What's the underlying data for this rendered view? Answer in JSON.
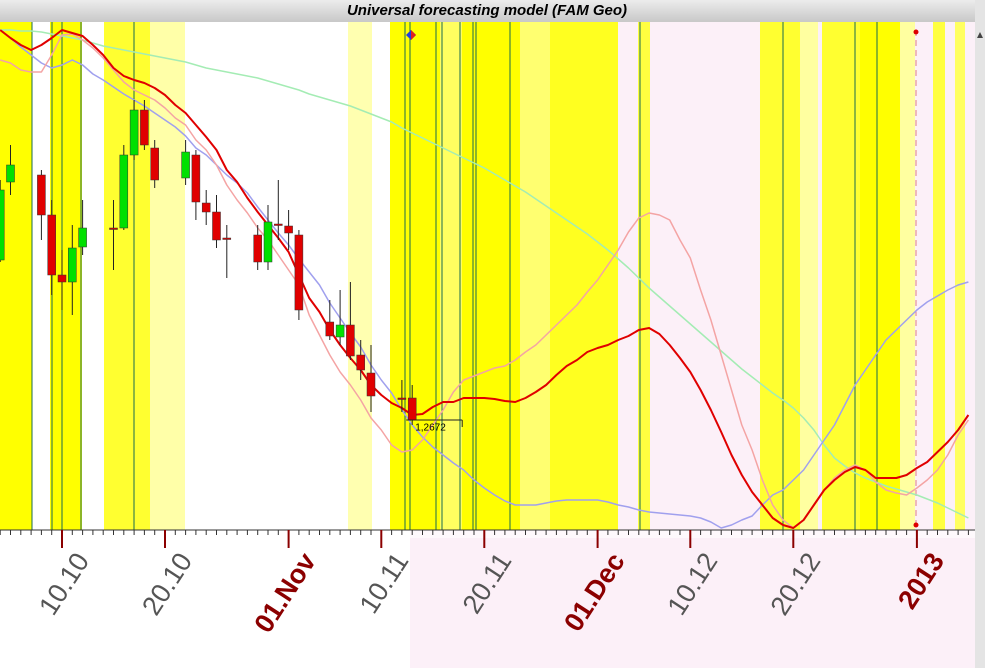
{
  "chart_data": {
    "type": "candlestick",
    "title": "Universal forecasting model (FAM Geo)",
    "categories": [
      null,
      null,
      null,
      null,
      null,
      null,
      "10.10",
      null,
      null,
      null,
      null,
      null,
      null,
      null,
      null,
      null,
      "20.10",
      null,
      null,
      null,
      null,
      null,
      null,
      null,
      null,
      null,
      null,
      null,
      "01.Nov",
      null,
      null,
      null,
      null,
      null,
      null,
      null,
      null,
      "10.11",
      null,
      null,
      null,
      null,
      null,
      null,
      null,
      null,
      null,
      "20.11",
      null,
      null,
      null,
      null,
      null,
      null,
      null,
      null,
      null,
      null,
      "01.Dec",
      null,
      null,
      null,
      null,
      null,
      null,
      null,
      null,
      "10.12",
      null,
      null,
      null,
      null,
      null,
      null,
      null,
      null,
      null,
      "20.12",
      null,
      null,
      null,
      null,
      null,
      null,
      null,
      null,
      null,
      null,
      null,
      "2013",
      null,
      null,
      null,
      null,
      null
    ],
    "ohlc": {
      "up_color": "#00e000",
      "down_color": "#e00000",
      "open": [
        1.2832,
        1.291,
        null,
        null,
        1.2917,
        1.2877,
        1.2817,
        1.281,
        1.2845,
        null,
        null,
        1.2864,
        1.2864,
        1.2937,
        1.2982,
        1.2944,
        null,
        null,
        1.2914,
        1.2937,
        1.2889,
        1.288,
        1.2854,
        null,
        null,
        1.2857,
        1.283,
        1.2868,
        1.2866,
        1.2857,
        null,
        null,
        1.277,
        1.2755,
        1.2767,
        1.2737,
        1.2719,
        null,
        null,
        1.2694,
        1.2694,
        null,
        null,
        null,
        null,
        null,
        null,
        null,
        null,
        null,
        null,
        null,
        null,
        null,
        null,
        null,
        null,
        null,
        null,
        null,
        null,
        null,
        null,
        null,
        null,
        null,
        null,
        null,
        null,
        null,
        null,
        null,
        null,
        null,
        null,
        null,
        null,
        null,
        null,
        null,
        null,
        null,
        null,
        null,
        null,
        null,
        null,
        null,
        null,
        null,
        null,
        null,
        null,
        null,
        null
      ],
      "high": [
        1.2912,
        1.2947,
        null,
        null,
        1.2922,
        1.2892,
        1.2842,
        1.2867,
        1.2892,
        null,
        null,
        1.2892,
        1.2947,
        1.2992,
        1.2992,
        1.2952,
        null,
        null,
        1.2952,
        1.2942,
        1.2902,
        1.2897,
        1.2867,
        null,
        null,
        1.2867,
        1.2887,
        1.2912,
        1.2882,
        1.2862,
        null,
        null,
        1.2792,
        1.2802,
        1.281,
        1.2752,
        1.2747,
        null,
        null,
        1.2712,
        1.2707,
        null,
        null,
        null,
        null,
        null,
        null,
        null,
        null,
        null,
        null,
        null,
        null,
        null,
        null,
        null,
        null,
        null,
        null,
        null,
        null,
        null,
        null,
        null,
        null,
        null,
        null,
        null,
        null,
        null,
        null,
        null,
        null,
        null,
        null,
        null,
        null,
        null,
        null,
        null,
        null,
        null,
        null,
        null,
        null,
        null,
        null,
        null,
        null,
        null,
        null,
        null,
        null,
        null,
        null
      ],
      "low": [
        1.283,
        1.2897,
        null,
        null,
        1.2852,
        1.2797,
        1.2782,
        1.2777,
        1.2837,
        null,
        null,
        1.2822,
        1.2862,
        1.2932,
        1.2942,
        1.2904,
        null,
        null,
        1.2907,
        1.2872,
        1.2867,
        1.2844,
        1.2814,
        null,
        null,
        1.2822,
        1.2822,
        1.2852,
        1.2842,
        1.2772,
        null,
        null,
        1.2752,
        1.2747,
        1.2732,
        1.2712,
        1.268,
        null,
        null,
        1.268,
        1.2667,
        null,
        null,
        null,
        null,
        null,
        null,
        null,
        null,
        null,
        null,
        null,
        null,
        null,
        null,
        null,
        null,
        null,
        null,
        null,
        null,
        null,
        null,
        null,
        null,
        null,
        null,
        null,
        null,
        null,
        null,
        null,
        null,
        null,
        null,
        null,
        null,
        null,
        null,
        null,
        null,
        null,
        null,
        null,
        null,
        null,
        null,
        null,
        null,
        null,
        null,
        null,
        null,
        null,
        null
      ],
      "close": [
        1.2902,
        1.2927,
        null,
        null,
        1.2877,
        1.2817,
        1.281,
        1.2844,
        1.2864,
        null,
        null,
        1.2863,
        1.2937,
        1.2982,
        1.2947,
        1.2912,
        null,
        null,
        1.294,
        1.289,
        1.288,
        1.2852,
        1.2853,
        null,
        null,
        1.283,
        1.287,
        1.2867,
        1.2859,
        1.2782,
        null,
        null,
        1.2756,
        1.2767,
        1.2736,
        1.2722,
        1.2696,
        null,
        null,
        1.2693,
        1.2672,
        null,
        null,
        null,
        null,
        null,
        null,
        null,
        null,
        null,
        null,
        null,
        null,
        null,
        null,
        null,
        null,
        null,
        null,
        null,
        null,
        null,
        null,
        null,
        null,
        null,
        null,
        null,
        null,
        null,
        null,
        null,
        null,
        null,
        null,
        null,
        null,
        null,
        null,
        null,
        null,
        null,
        null,
        null,
        null,
        null,
        null,
        null,
        null,
        null,
        null,
        null,
        null,
        null,
        null
      ]
    },
    "lines": [
      {
        "color": "#a4ecb4",
        "width": 1.5,
        "values": [
          1.3062,
          1.3062,
          1.3061,
          1.3061,
          1.306,
          1.3058,
          1.3056,
          1.3054,
          1.3052,
          1.3049,
          1.3046,
          1.3044,
          1.3042,
          1.304,
          1.3038,
          1.3036,
          1.3034,
          1.3032,
          1.303,
          1.3027,
          1.3024,
          1.3022,
          1.302,
          1.3018,
          1.3016,
          1.3014,
          1.3011,
          1.3008,
          1.3005,
          1.3002,
          1.2998,
          1.2995,
          1.2992,
          1.2989,
          1.2986,
          1.2982,
          1.2978,
          1.2974,
          1.297,
          1.2964,
          1.2959,
          1.2954,
          1.2949,
          1.2944,
          1.2939,
          1.2934,
          1.2929,
          1.2924,
          1.2918,
          1.2912,
          1.2906,
          1.29,
          1.2893,
          1.2886,
          1.2879,
          1.2872,
          1.2865,
          1.2858,
          1.285,
          1.2842,
          1.2833,
          1.2824,
          1.2814,
          1.2804,
          1.2795,
          1.2786,
          1.2777,
          1.2768,
          1.2759,
          1.275,
          1.2741,
          1.2732,
          1.2723,
          1.2715,
          1.2707,
          1.2699,
          1.2692,
          1.2684,
          1.2674,
          1.2662,
          1.2647,
          1.2634,
          1.2626,
          1.2619,
          1.2614,
          1.261,
          1.2606,
          1.2603,
          1.26,
          1.2597,
          1.2593,
          1.2589,
          1.2584,
          1.2579,
          1.2574
        ]
      },
      {
        "color": "#a0a0ee",
        "width": 1.5,
        "values": [
          1.3062,
          1.3054,
          1.3045,
          1.3037,
          1.3029,
          1.3024,
          1.3027,
          1.3032,
          1.3027,
          1.3018,
          1.3012,
          1.3005,
          1.2998,
          1.2992,
          1.2986,
          1.2979,
          1.2972,
          1.2965,
          1.2956,
          1.2944,
          1.2937,
          1.2927,
          1.2917,
          1.2909,
          1.2899,
          1.2885,
          1.2872,
          1.2859,
          1.2847,
          1.2833,
          1.282,
          1.2807,
          1.2789,
          1.2774,
          1.2759,
          1.2745,
          1.2727,
          1.2712,
          1.2699,
          1.2682,
          1.2667,
          1.2655,
          1.2645,
          1.2637,
          1.2629,
          1.2622,
          1.2612,
          1.2604,
          1.2597,
          1.2591,
          1.2587,
          1.2587,
          1.2587,
          1.2589,
          1.2591,
          1.2592,
          1.2592,
          1.2592,
          1.2592,
          1.259,
          1.2587,
          1.2585,
          1.2582,
          1.258,
          1.2579,
          1.2578,
          1.2577,
          1.2576,
          1.2574,
          1.257,
          1.2564,
          1.2567,
          1.2572,
          1.2576,
          1.2587,
          1.2597,
          1.2602,
          1.2612,
          1.2622,
          1.2637,
          1.2652,
          1.2667,
          1.2687,
          1.2707,
          1.2722,
          1.2737,
          1.2752,
          1.2762,
          1.2772,
          1.2782,
          1.279,
          1.2796,
          1.2802,
          1.2807,
          1.281
        ]
      },
      {
        "color": "#f4a4a4",
        "width": 1.5,
        "values": [
          1.3032,
          1.3029,
          1.3022,
          1.302,
          1.302,
          1.3037,
          1.3057,
          1.3058,
          1.3052,
          1.3044,
          1.3034,
          1.3022,
          1.301,
          1.3002,
          1.2997,
          1.2992,
          1.2984,
          1.2974,
          1.2967,
          1.2952,
          1.2942,
          1.2927,
          1.2907,
          1.2892,
          1.2879,
          1.2864,
          1.2852,
          1.2837,
          1.2822,
          1.2807,
          1.2777,
          1.2757,
          1.2737,
          1.272,
          1.2707,
          1.2692,
          1.2674,
          1.2662,
          1.2647,
          1.264,
          1.2642,
          1.2652,
          1.2667,
          1.2682,
          1.27,
          1.2712,
          1.2716,
          1.272,
          1.2724,
          1.2726,
          1.2732,
          1.274,
          1.2747,
          1.2757,
          1.2767,
          1.2777,
          1.2787,
          1.28,
          1.2812,
          1.2827,
          1.2842,
          1.286,
          1.2874,
          1.2879,
          1.2877,
          1.2872,
          1.2852,
          1.2834,
          1.2802,
          1.2772,
          1.2737,
          1.2702,
          1.2667,
          1.2642,
          1.2612,
          1.2587,
          1.2572,
          1.2564,
          1.2572,
          1.2587,
          1.2602,
          1.2614,
          1.2622,
          1.2627,
          1.2622,
          1.261,
          1.2602,
          1.2599,
          1.2597,
          1.2604,
          1.2612,
          1.2622,
          1.2637,
          1.2657,
          1.2672
        ]
      },
      {
        "color": "#e00000",
        "width": 2,
        "values": [
          1.3062,
          1.3054,
          1.3047,
          1.3042,
          1.3047,
          1.3054,
          1.3062,
          1.3059,
          1.3056,
          1.3047,
          1.3037,
          1.3024,
          1.3016,
          1.3012,
          1.3009,
          1.3004,
          1.2997,
          1.2987,
          1.2979,
          1.2967,
          1.2955,
          1.2942,
          1.2922,
          1.291,
          1.2894,
          1.288,
          1.2867,
          1.2854,
          1.284,
          1.2817,
          1.2794,
          1.278,
          1.2762,
          1.2747,
          1.2734,
          1.2722,
          1.2707,
          1.2697,
          1.2689,
          1.2684,
          1.2677,
          1.2678,
          1.2685,
          1.269,
          1.269,
          1.2694,
          1.2694,
          1.2694,
          1.2693,
          1.2691,
          1.269,
          1.2694,
          1.27,
          1.2707,
          1.2717,
          1.2726,
          1.2732,
          1.274,
          1.2744,
          1.2747,
          1.2752,
          1.2756,
          1.2762,
          1.2764,
          1.2758,
          1.2747,
          1.2734,
          1.272,
          1.2702,
          1.2682,
          1.266,
          1.2637,
          1.2617,
          1.26,
          1.2587,
          1.2574,
          1.2567,
          1.2564,
          1.2572,
          1.2587,
          1.2602,
          1.2612,
          1.262,
          1.2625,
          1.2622,
          1.2614,
          1.2614,
          1.2614,
          1.2617,
          1.2624,
          1.263,
          1.264,
          1.265,
          1.2662,
          1.2677
        ]
      }
    ],
    "annotations": [
      {
        "value": 1.2672,
        "label": "1,2672"
      }
    ],
    "ylim": [
      1.2562,
      1.3062
    ]
  }
}
